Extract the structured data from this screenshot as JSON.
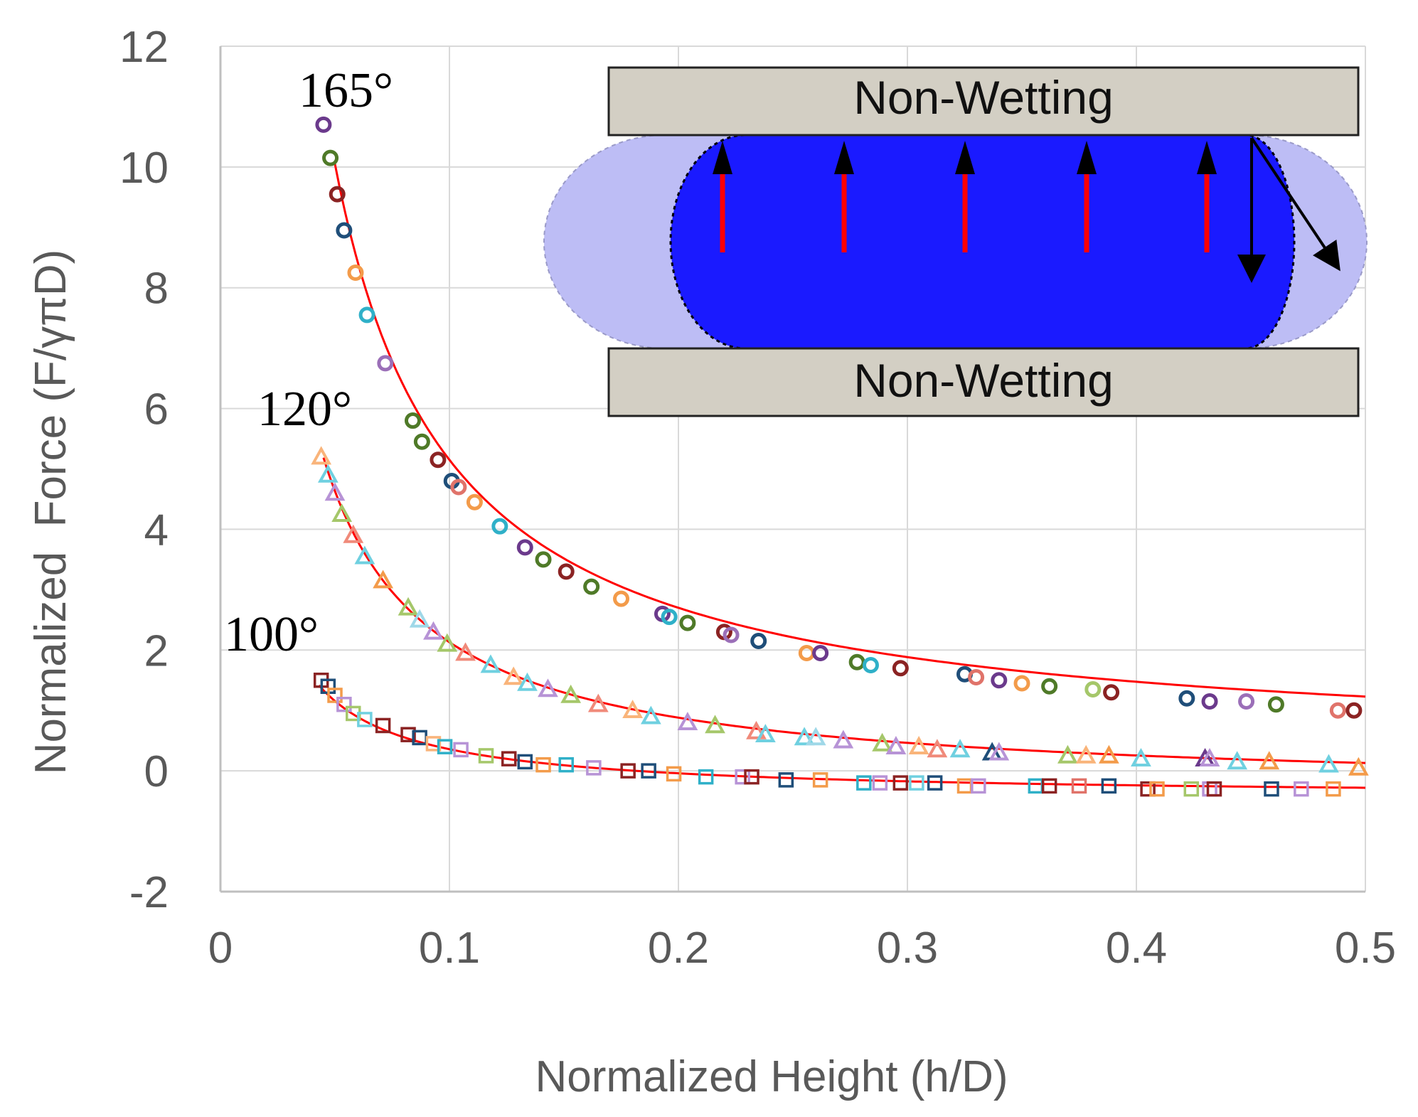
{
  "chart_data": {
    "type": "scatter",
    "title": "",
    "xlabel": "Normalized Height (h/D)",
    "ylabel": "Normalized  Force (F/γπD)",
    "xlim": [
      0,
      0.5
    ],
    "ylim": [
      -2,
      12
    ],
    "x_ticks": [
      "0",
      "0.1",
      "0.2",
      "0.3",
      "0.4",
      "0.5"
    ],
    "y_ticks": [
      "-2",
      "0",
      "2",
      "4",
      "6",
      "8",
      "10",
      "12"
    ],
    "grid": true,
    "series": [
      {
        "name": "165°",
        "marker": "circle",
        "points": [
          [
            0.045,
            10.7,
            "#6b3a8c"
          ],
          [
            0.048,
            10.15,
            "#4f7a28"
          ],
          [
            0.051,
            9.55,
            "#8b2323"
          ],
          [
            0.054,
            8.95,
            "#1f4e79"
          ],
          [
            0.059,
            8.25,
            "#f39b4a"
          ],
          [
            0.064,
            7.55,
            "#2fb0c8"
          ],
          [
            0.072,
            6.75,
            "#9b6fb8"
          ],
          [
            0.084,
            5.8,
            "#4f7a28"
          ],
          [
            0.088,
            5.45,
            "#4f7a28"
          ],
          [
            0.095,
            5.15,
            "#8b2323"
          ],
          [
            0.101,
            4.8,
            "#1f4e79"
          ],
          [
            0.104,
            4.7,
            "#e0736a"
          ],
          [
            0.111,
            4.45,
            "#f39b4a"
          ],
          [
            0.122,
            4.05,
            "#2fb0c8"
          ],
          [
            0.133,
            3.7,
            "#6b3a8c"
          ],
          [
            0.141,
            3.5,
            "#4f7a28"
          ],
          [
            0.151,
            3.3,
            "#8b2323"
          ],
          [
            0.162,
            3.05,
            "#4f7a28"
          ],
          [
            0.175,
            2.85,
            "#f39b4a"
          ],
          [
            0.193,
            2.6,
            "#6b3a8c"
          ],
          [
            0.196,
            2.55,
            "#2fb0c8"
          ],
          [
            0.204,
            2.45,
            "#4f7a28"
          ],
          [
            0.22,
            2.3,
            "#8b2323"
          ],
          [
            0.223,
            2.25,
            "#9b6fb8"
          ],
          [
            0.235,
            2.15,
            "#1f4e79"
          ],
          [
            0.256,
            1.95,
            "#f39b4a"
          ],
          [
            0.262,
            1.95,
            "#6b3a8c"
          ],
          [
            0.278,
            1.8,
            "#4f7a28"
          ],
          [
            0.284,
            1.75,
            "#2fb0c8"
          ],
          [
            0.297,
            1.7,
            "#8b2323"
          ],
          [
            0.325,
            1.6,
            "#1f4e79"
          ],
          [
            0.33,
            1.55,
            "#e0736a"
          ],
          [
            0.34,
            1.5,
            "#6b3a8c"
          ],
          [
            0.35,
            1.45,
            "#f39b4a"
          ],
          [
            0.362,
            1.4,
            "#4f7a28"
          ],
          [
            0.381,
            1.35,
            "#a5c76a"
          ],
          [
            0.389,
            1.3,
            "#8b2323"
          ],
          [
            0.422,
            1.2,
            "#1f4e79"
          ],
          [
            0.432,
            1.15,
            "#6b3a8c"
          ],
          [
            0.448,
            1.15,
            "#9b6fb8"
          ],
          [
            0.461,
            1.1,
            "#4f7a28"
          ],
          [
            0.488,
            1.0,
            "#e0736a"
          ],
          [
            0.495,
            1.0,
            "#8b2323"
          ]
        ]
      },
      {
        "name": "120°",
        "marker": "triangle",
        "points": [
          [
            0.044,
            5.2,
            "#f9b47a"
          ],
          [
            0.047,
            4.9,
            "#6fd0e0"
          ],
          [
            0.05,
            4.6,
            "#b793d6"
          ],
          [
            0.053,
            4.25,
            "#a5c76a"
          ],
          [
            0.058,
            3.9,
            "#f08a7a"
          ],
          [
            0.063,
            3.55,
            "#6fd0e0"
          ],
          [
            0.071,
            3.15,
            "#f39b4a"
          ],
          [
            0.082,
            2.7,
            "#a5c76a"
          ],
          [
            0.087,
            2.5,
            "#9fd8e8"
          ],
          [
            0.093,
            2.3,
            "#b793d6"
          ],
          [
            0.099,
            2.1,
            "#a5c76a"
          ],
          [
            0.107,
            1.95,
            "#f08a7a"
          ],
          [
            0.118,
            1.75,
            "#6fd0e0"
          ],
          [
            0.128,
            1.55,
            "#f9b47a"
          ],
          [
            0.134,
            1.45,
            "#6fd0e0"
          ],
          [
            0.143,
            1.35,
            "#b793d6"
          ],
          [
            0.153,
            1.25,
            "#a5c76a"
          ],
          [
            0.165,
            1.1,
            "#f08a7a"
          ],
          [
            0.18,
            1.0,
            "#f9b47a"
          ],
          [
            0.188,
            0.9,
            "#6fd0e0"
          ],
          [
            0.204,
            0.8,
            "#b793d6"
          ],
          [
            0.216,
            0.75,
            "#a5c76a"
          ],
          [
            0.234,
            0.65,
            "#f08a7a"
          ],
          [
            0.238,
            0.6,
            "#6fd0e0"
          ],
          [
            0.255,
            0.55,
            "#6fd0e0"
          ],
          [
            0.26,
            0.55,
            "#9fd8e8"
          ],
          [
            0.272,
            0.5,
            "#b793d6"
          ],
          [
            0.289,
            0.45,
            "#a5c76a"
          ],
          [
            0.295,
            0.4,
            "#b793d6"
          ],
          [
            0.305,
            0.4,
            "#f9b47a"
          ],
          [
            0.313,
            0.35,
            "#f08a7a"
          ],
          [
            0.323,
            0.35,
            "#6fd0e0"
          ],
          [
            0.337,
            0.3,
            "#1f4e79"
          ],
          [
            0.34,
            0.3,
            "#b793d6"
          ],
          [
            0.37,
            0.25,
            "#a5c76a"
          ],
          [
            0.378,
            0.25,
            "#f9b47a"
          ],
          [
            0.388,
            0.25,
            "#f39b4a"
          ],
          [
            0.402,
            0.2,
            "#6fd0e0"
          ],
          [
            0.43,
            0.2,
            "#6b3a8c"
          ],
          [
            0.432,
            0.2,
            "#b793d6"
          ],
          [
            0.444,
            0.15,
            "#6fd0e0"
          ],
          [
            0.458,
            0.15,
            "#f39b4a"
          ],
          [
            0.484,
            0.1,
            "#6fd0e0"
          ],
          [
            0.497,
            0.05,
            "#f39b4a"
          ]
        ]
      },
      {
        "name": "100°",
        "marker": "square",
        "points": [
          [
            0.044,
            1.5,
            "#8b2323"
          ],
          [
            0.047,
            1.4,
            "#1f4e79"
          ],
          [
            0.05,
            1.25,
            "#f39b4a"
          ],
          [
            0.054,
            1.1,
            "#b793d6"
          ],
          [
            0.058,
            0.95,
            "#a5c76a"
          ],
          [
            0.063,
            0.85,
            "#6fd0e0"
          ],
          [
            0.071,
            0.75,
            "#8b2323"
          ],
          [
            0.082,
            0.6,
            "#8b2323"
          ],
          [
            0.087,
            0.55,
            "#1f4e79"
          ],
          [
            0.093,
            0.45,
            "#f9b47a"
          ],
          [
            0.098,
            0.4,
            "#2fb0c8"
          ],
          [
            0.105,
            0.35,
            "#b793d6"
          ],
          [
            0.116,
            0.25,
            "#a5c76a"
          ],
          [
            0.126,
            0.2,
            "#8b2323"
          ],
          [
            0.133,
            0.15,
            "#1f4e79"
          ],
          [
            0.141,
            0.1,
            "#f39b4a"
          ],
          [
            0.151,
            0.1,
            "#2fb0c8"
          ],
          [
            0.163,
            0.05,
            "#b793d6"
          ],
          [
            0.178,
            0.0,
            "#8b2323"
          ],
          [
            0.187,
            0.0,
            "#1f4e79"
          ],
          [
            0.198,
            -0.05,
            "#f39b4a"
          ],
          [
            0.212,
            -0.1,
            "#2fb0c8"
          ],
          [
            0.228,
            -0.1,
            "#b793d6"
          ],
          [
            0.232,
            -0.1,
            "#8b2323"
          ],
          [
            0.247,
            -0.15,
            "#1f4e79"
          ],
          [
            0.262,
            -0.15,
            "#f39b4a"
          ],
          [
            0.281,
            -0.2,
            "#2fb0c8"
          ],
          [
            0.288,
            -0.2,
            "#b793d6"
          ],
          [
            0.297,
            -0.2,
            "#8b2323"
          ],
          [
            0.304,
            -0.2,
            "#6fd0e0"
          ],
          [
            0.312,
            -0.2,
            "#1f4e79"
          ],
          [
            0.325,
            -0.25,
            "#f39b4a"
          ],
          [
            0.331,
            -0.25,
            "#b793d6"
          ],
          [
            0.356,
            -0.25,
            "#2fb0c8"
          ],
          [
            0.362,
            -0.25,
            "#8b2323"
          ],
          [
            0.375,
            -0.25,
            "#e0736a"
          ],
          [
            0.388,
            -0.25,
            "#1f4e79"
          ],
          [
            0.405,
            -0.3,
            "#8b2323"
          ],
          [
            0.409,
            -0.3,
            "#f39b4a"
          ],
          [
            0.424,
            -0.3,
            "#a5c76a"
          ],
          [
            0.432,
            -0.3,
            "#b793d6"
          ],
          [
            0.434,
            -0.3,
            "#8b2323"
          ],
          [
            0.459,
            -0.3,
            "#1f4e79"
          ],
          [
            0.472,
            -0.3,
            "#b793d6"
          ],
          [
            0.486,
            -0.3,
            "#f39b4a"
          ]
        ]
      }
    ],
    "fit_curves": [
      {
        "name": "165° fit",
        "color": "#ff0000",
        "form": "y = a/x + b",
        "a": 0.49,
        "b": 0.25,
        "x_range": [
          0.05,
          0.5
        ]
      },
      {
        "name": "120° fit",
        "color": "#ff0000",
        "form": "y = a/x + b",
        "a": 0.25,
        "b": -0.37,
        "x_range": [
          0.045,
          0.5
        ]
      },
      {
        "name": "100° fit",
        "color": "#ff0000",
        "form": "y = a/x + b",
        "a": 0.0798,
        "b": -0.44,
        "x_range": [
          0.043,
          0.5
        ]
      }
    ],
    "annotations": [
      "165°",
      "120°",
      "100°"
    ]
  },
  "inset": {
    "top_plate": "Non-Wetting",
    "bottom_plate": "Non-Wetting",
    "colors": {
      "plate": "#d3cfc4",
      "droplet": "#1a1aff",
      "droplet_halo": "#bdbdf5",
      "pressure_arrow": "#ff0000",
      "tension_arrow": "#000000"
    }
  },
  "colors": {
    "grid": "#d9d9d9",
    "axis": "#bfbfbf",
    "fit": "#ff0000"
  }
}
